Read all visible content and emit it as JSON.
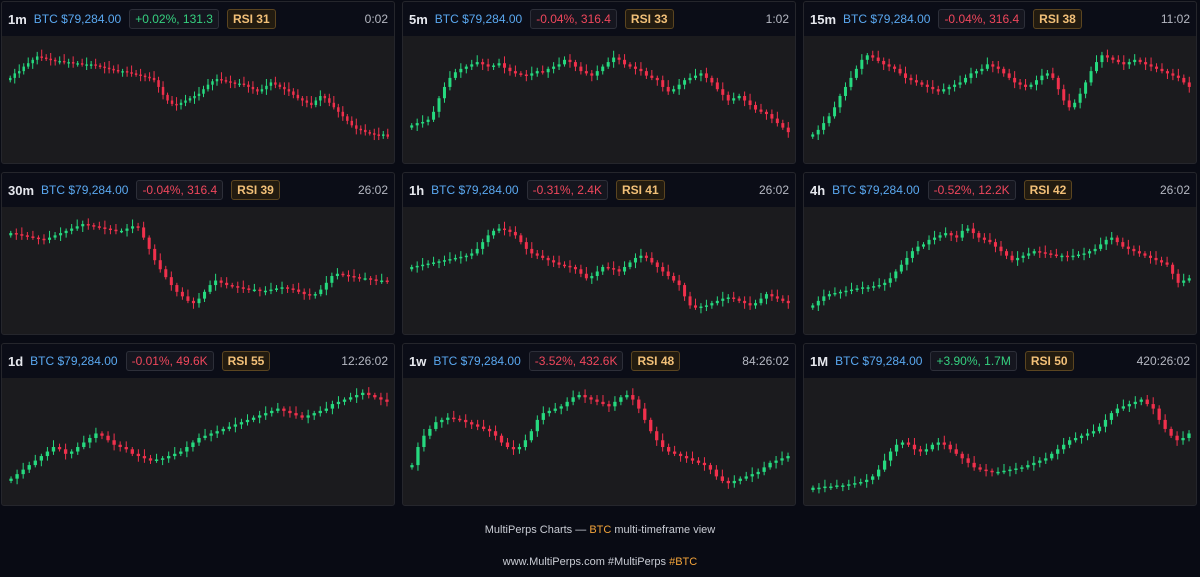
{
  "colors": {
    "up": "#26d97f",
    "down": "#f0304c",
    "price": "#5aa8f0",
    "accent": "#f2a33a"
  },
  "panels": [
    {
      "timeframe": "1m",
      "price": "BTC $79,284.00",
      "change": "+0.02%, 131.3",
      "direction": "up",
      "rsi": "RSI 31",
      "timer": "0:02",
      "series": [
        70,
        74,
        76,
        80,
        83,
        86,
        89,
        88,
        87,
        86,
        85,
        85,
        84,
        84,
        83,
        83,
        82,
        82,
        82,
        81,
        80,
        79,
        78,
        77,
        76,
        76,
        75,
        74,
        73,
        72,
        71,
        70,
        68,
        62,
        55,
        50,
        47,
        46,
        48,
        50,
        52,
        54,
        56,
        60,
        64,
        67,
        69,
        68,
        67,
        66,
        65,
        65,
        64,
        62,
        60,
        58,
        60,
        63,
        66,
        64,
        62,
        60,
        58,
        55,
        52,
        50,
        48,
        46,
        50,
        54,
        52,
        48,
        44,
        40,
        36,
        32,
        28,
        25,
        24,
        22,
        21,
        20,
        19,
        20,
        18
      ]
    },
    {
      "timeframe": "5m",
      "price": "BTC $79,284.00",
      "change": "-0.04%, 316.4",
      "direction": "down",
      "rsi": "RSI 33",
      "timer": "1:02",
      "series": [
        28,
        30,
        31,
        33,
        40,
        52,
        62,
        70,
        75,
        78,
        80,
        82,
        84,
        82,
        80,
        81,
        83,
        79,
        76,
        74,
        73,
        72,
        74,
        76,
        75,
        78,
        80,
        82,
        86,
        84,
        80,
        76,
        74,
        72,
        76,
        80,
        84,
        88,
        86,
        82,
        80,
        78,
        76,
        72,
        70,
        68,
        62,
        58,
        60,
        64,
        68,
        70,
        72,
        74,
        70,
        66,
        60,
        55,
        50,
        52,
        54,
        50,
        46,
        42,
        40,
        38,
        34,
        30,
        26,
        22
      ]
    },
    {
      "timeframe": "15m",
      "price": "BTC $79,284.00",
      "change": "-0.04%, 316.4",
      "direction": "down",
      "rsi": "RSI 38",
      "timer": "11:02",
      "series": [
        20,
        24,
        30,
        36,
        44,
        54,
        62,
        70,
        78,
        86,
        90,
        88,
        85,
        82,
        80,
        78,
        74,
        70,
        68,
        66,
        64,
        62,
        60,
        58,
        60,
        62,
        64,
        66,
        70,
        74,
        76,
        78,
        82,
        80,
        78,
        74,
        70,
        66,
        64,
        62,
        64,
        68,
        72,
        74,
        70,
        60,
        50,
        44,
        48,
        56,
        66,
        76,
        84,
        90,
        88,
        86,
        84,
        82,
        84,
        86,
        84,
        82,
        80,
        78,
        76,
        74,
        72,
        70,
        66,
        62
      ]
    },
    {
      "timeframe": "30m",
      "price": "BTC $79,284.00",
      "change": "-0.04%, 316.4",
      "direction": "down",
      "rsi": "RSI 39",
      "timer": "26:02",
      "series": [
        84,
        83,
        82,
        81,
        80,
        79,
        78,
        80,
        82,
        84,
        86,
        88,
        90,
        92,
        91,
        90,
        89,
        88,
        87,
        86,
        86,
        88,
        90,
        89,
        80,
        70,
        60,
        52,
        45,
        38,
        32,
        28,
        24,
        22,
        26,
        32,
        38,
        42,
        40,
        38,
        37,
        36,
        35,
        34,
        34,
        33,
        33,
        34,
        35,
        36,
        35,
        34,
        32,
        30,
        29,
        30,
        34,
        40,
        46,
        48,
        47,
        46,
        45,
        44,
        44,
        43,
        42,
        42,
        41
      ]
    },
    {
      "timeframe": "1h",
      "price": "BTC $79,284.00",
      "change": "-0.31%, 2.4K",
      "direction": "down",
      "rsi": "RSI 41",
      "timer": "26:02",
      "series": [
        54,
        55,
        56,
        57,
        58,
        59,
        60,
        61,
        62,
        63,
        64,
        66,
        70,
        76,
        82,
        86,
        88,
        87,
        85,
        82,
        76,
        70,
        66,
        64,
        62,
        60,
        58,
        56,
        55,
        54,
        52,
        48,
        44,
        46,
        50,
        54,
        53,
        52,
        50,
        54,
        58,
        62,
        64,
        62,
        58,
        54,
        50,
        46,
        42,
        38,
        28,
        20,
        18,
        19,
        20,
        22,
        24,
        26,
        27,
        26,
        24,
        22,
        20,
        22,
        26,
        30,
        28,
        26,
        24,
        22
      ]
    },
    {
      "timeframe": "4h",
      "price": "BTC $79,284.00",
      "change": "-0.52%, 12.2K",
      "direction": "down",
      "rsi": "RSI 42",
      "timer": "26:02",
      "series": [
        20,
        24,
        28,
        30,
        31,
        32,
        33,
        34,
        35,
        36,
        36,
        37,
        38,
        40,
        44,
        50,
        56,
        62,
        68,
        72,
        74,
        78,
        80,
        82,
        84,
        82,
        80,
        86,
        88,
        84,
        80,
        78,
        76,
        72,
        68,
        64,
        60,
        62,
        64,
        66,
        68,
        67,
        66,
        65,
        64,
        64,
        63,
        64,
        65,
        66,
        68,
        70,
        74,
        78,
        80,
        76,
        72,
        70,
        68,
        66,
        64,
        62,
        60,
        58,
        56,
        48,
        40,
        42,
        44
      ]
    },
    {
      "timeframe": "1d",
      "price": "BTC $79,284.00",
      "change": "-0.01%, 49.6K",
      "direction": "down",
      "rsi": "RSI 55",
      "timer": "12:26:02",
      "series": [
        18,
        22,
        26,
        30,
        34,
        38,
        42,
        46,
        44,
        40,
        42,
        46,
        50,
        54,
        58,
        56,
        52,
        48,
        46,
        44,
        40,
        38,
        36,
        34,
        35,
        36,
        38,
        40,
        42,
        46,
        50,
        54,
        56,
        58,
        60,
        62,
        64,
        66,
        68,
        70,
        72,
        74,
        76,
        78,
        80,
        78,
        76,
        74,
        72,
        74,
        76,
        78,
        80,
        84,
        86,
        88,
        90,
        92,
        94,
        92,
        90,
        88,
        86
      ]
    },
    {
      "timeframe": "1w",
      "price": "BTC $79,284.00",
      "change": "-3.52%, 432.6K",
      "direction": "down",
      "rsi": "RSI 48",
      "timer": "84:26:02",
      "series": [
        30,
        46,
        56,
        62,
        68,
        70,
        72,
        71,
        70,
        68,
        66,
        64,
        62,
        60,
        56,
        50,
        46,
        44,
        46,
        52,
        60,
        70,
        76,
        78,
        80,
        82,
        86,
        90,
        92,
        90,
        88,
        86,
        84,
        82,
        86,
        90,
        92,
        88,
        80,
        70,
        60,
        52,
        46,
        42,
        40,
        38,
        36,
        34,
        32,
        30,
        26,
        20,
        16,
        14,
        16,
        18,
        20,
        22,
        24,
        28,
        32,
        34,
        36,
        38
      ]
    },
    {
      "timeframe": "1M",
      "price": "BTC $79,284.00",
      "change": "+3.90%, 1.7M",
      "direction": "up",
      "rsi": "RSI 50",
      "timer": "420:26:02",
      "series": [
        10,
        10,
        11,
        11,
        12,
        12,
        13,
        14,
        15,
        17,
        20,
        26,
        34,
        42,
        48,
        50,
        48,
        44,
        42,
        44,
        48,
        50,
        48,
        44,
        40,
        36,
        32,
        28,
        26,
        25,
        24,
        24,
        25,
        26,
        27,
        28,
        30,
        32,
        34,
        36,
        40,
        44,
        48,
        52,
        54,
        56,
        58,
        60,
        64,
        70,
        76,
        80,
        82,
        84,
        86,
        88,
        84,
        80,
        70,
        62,
        56,
        52,
        54,
        58
      ]
    }
  ],
  "footer": {
    "brand": "MultiPerps Charts —",
    "symbol": "BTC",
    "subtitle": "multi-timeframe view",
    "site": "www.MultiPerps.com #MultiPerps",
    "tag": "#BTC"
  }
}
